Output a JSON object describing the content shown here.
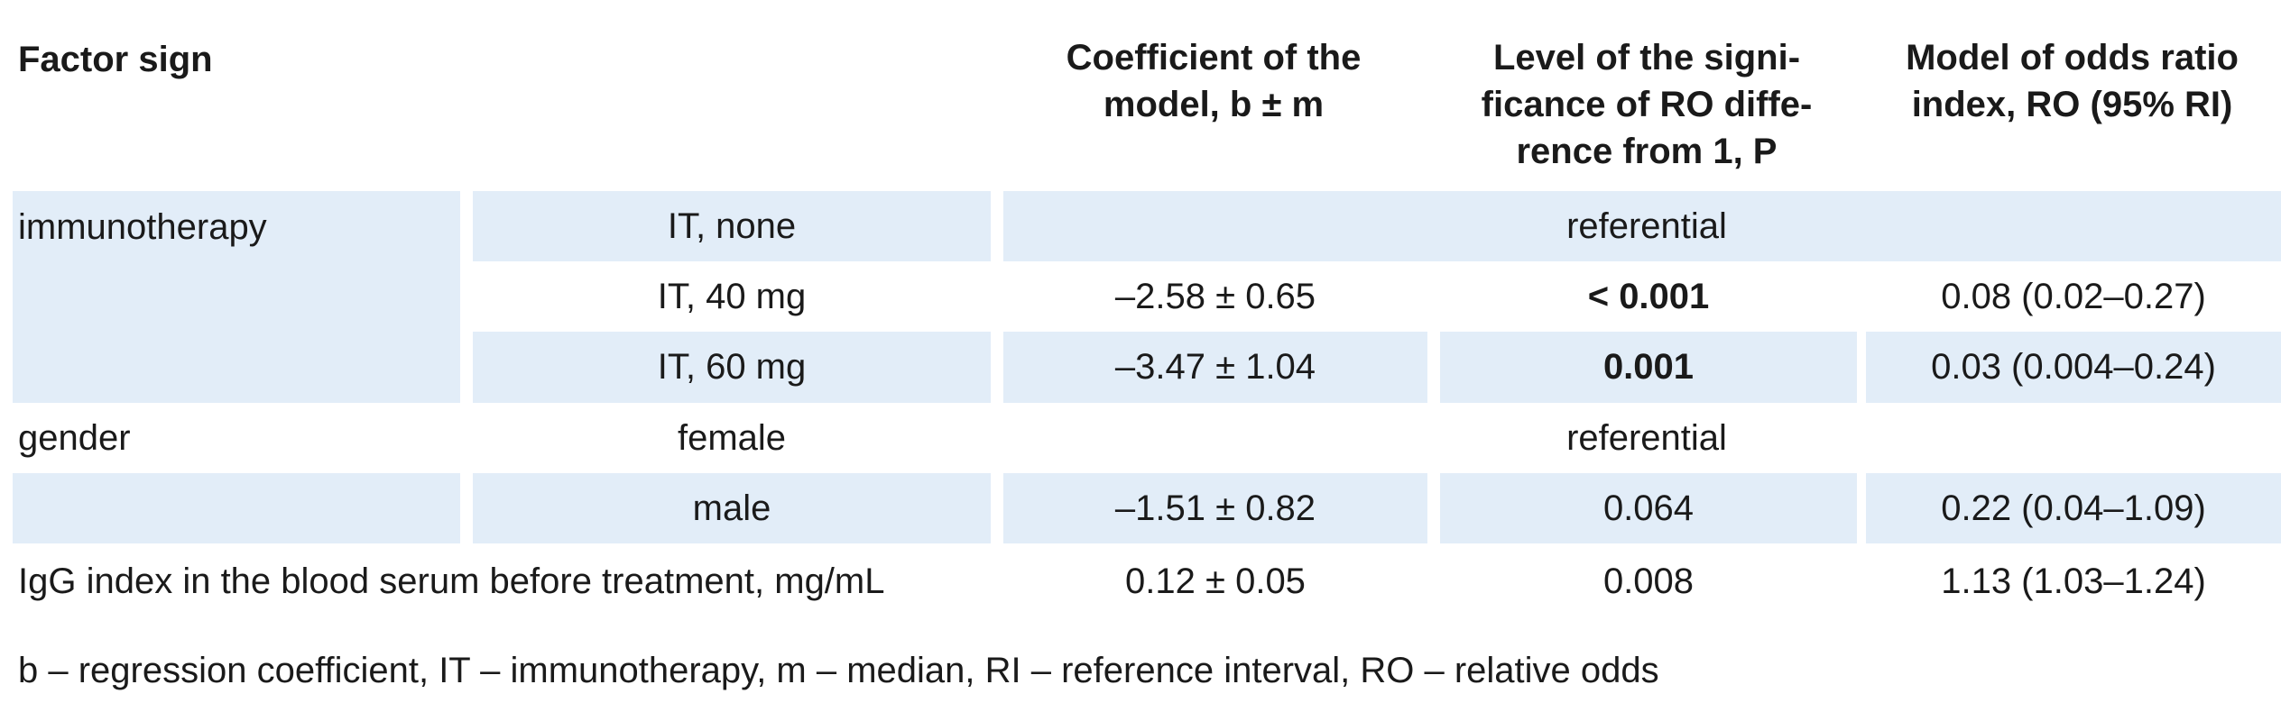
{
  "headers": {
    "factor": "Factor sign",
    "coef": "Coefficient of the model, b ± m",
    "p": "Level of the signi-ficance of RO diffe-rence from 1, P",
    "ro": "Model of odds ratio index, RO (95% RI)"
  },
  "header_lines": {
    "coef": [
      "Coefficient of the",
      "model, b ± m"
    ],
    "p": [
      "Level of the signi-",
      "ficance of RO diffe-",
      "rence from 1, P"
    ],
    "ro": [
      "Model of odds ratio",
      "index, RO (95% RI)"
    ]
  },
  "rows": {
    "immunotherapy": {
      "factor": "immunotherapy",
      "levels": [
        {
          "level": "IT, none",
          "merged": "referential"
        },
        {
          "level": "IT, 40 mg",
          "coef": "–2.58 ± 0.65",
          "p_prefix": "< ",
          "p": "0.001",
          "ro": "0.08 (0.02–0.27)"
        },
        {
          "level": "IT, 60 mg",
          "coef": "–3.47 ± 1.04",
          "p": "0.001",
          "ro": "0.03 (0.004–0.24)"
        }
      ]
    },
    "gender": {
      "factor": "gender",
      "levels": [
        {
          "level": "female",
          "merged": "referential"
        },
        {
          "level": "male",
          "coef": "–1.51 ± 0.82",
          "p": "0.064",
          "ro": "0.22 (0.04–1.09)"
        }
      ]
    },
    "igg": {
      "factor": "IgG index in the blood serum before treatment, mg/mL",
      "coef": "0.12 ± 0.05",
      "p": "0.008",
      "ro": "1.13 (1.03–1.24)"
    }
  },
  "footnote": "b – regression coefficient, IT – immunotherapy, m – median, RI – reference interval, RO – relative odds"
}
